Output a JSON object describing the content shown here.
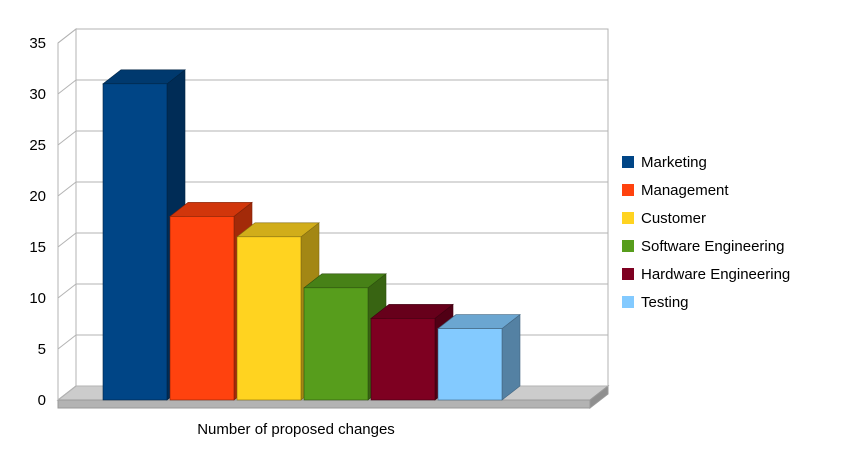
{
  "chart_data": {
    "type": "bar",
    "projection": "3d",
    "title": "",
    "xlabel": "Number of proposed changes",
    "ylabel": "",
    "categories": [
      "Marketing",
      "Management",
      "Customer",
      "Software Engineering",
      "Hardware Engineering",
      "Testing"
    ],
    "values": [
      31,
      18,
      16,
      11,
      8,
      7
    ],
    "series_colors": [
      "#004586",
      "#ff420e",
      "#ffd320",
      "#579d1c",
      "#7e0021",
      "#83caff"
    ],
    "ylim": [
      0,
      35
    ],
    "yticks": [
      0,
      5,
      10,
      15,
      20,
      25,
      30,
      35
    ],
    "grid": true,
    "legend_position": "right",
    "wall_color": "#ffffff",
    "floor_color": "#cccccc",
    "grid_color": "#b3b3b3"
  }
}
